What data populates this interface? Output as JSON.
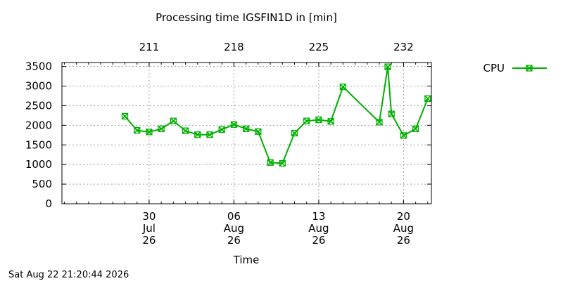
{
  "chart_data": {
    "type": "line",
    "title": "Processing time IGSFIN1D in [min]",
    "xlabel": "Time",
    "ylabel": "",
    "ylim": [
      0,
      3600
    ],
    "yticks": [
      0,
      500,
      1000,
      1500,
      2000,
      2500,
      3000,
      3500
    ],
    "xlim": [
      203.8,
      234.3
    ],
    "x_bottom_ticks": [
      {
        "x": 211,
        "label": [
          "30",
          "Jul",
          "26"
        ]
      },
      {
        "x": 218,
        "label": [
          "06",
          "Aug",
          "26"
        ]
      },
      {
        "x": 225,
        "label": [
          "13",
          "Aug",
          "26"
        ]
      },
      {
        "x": 232,
        "label": [
          "20",
          "Aug",
          "26"
        ]
      }
    ],
    "x_top_ticks": [
      {
        "x": 211,
        "label": "211"
      },
      {
        "x": 218,
        "label": "218"
      },
      {
        "x": 225,
        "label": "225"
      },
      {
        "x": 232,
        "label": "232"
      }
    ],
    "grid": true,
    "legend_position": "top-right",
    "series": [
      {
        "name": "CPU",
        "color": "#00b000",
        "marker": "x-square",
        "x": [
          209,
          210,
          211,
          212,
          213,
          214,
          215,
          216,
          217,
          218,
          219,
          220,
          221,
          222,
          223,
          224,
          225,
          226,
          227,
          230.0,
          230.7,
          231,
          232,
          233,
          234
        ],
        "values": [
          2230,
          1870,
          1830,
          1910,
          2110,
          1860,
          1760,
          1760,
          1890,
          2020,
          1910,
          1840,
          1050,
          1030,
          1800,
          2110,
          2140,
          2100,
          2980,
          2080,
          3490,
          2290,
          1740,
          1910,
          2680
        ]
      }
    ]
  },
  "footer": {
    "timestamp": "Sat Aug 22 21:20:44 2026"
  }
}
